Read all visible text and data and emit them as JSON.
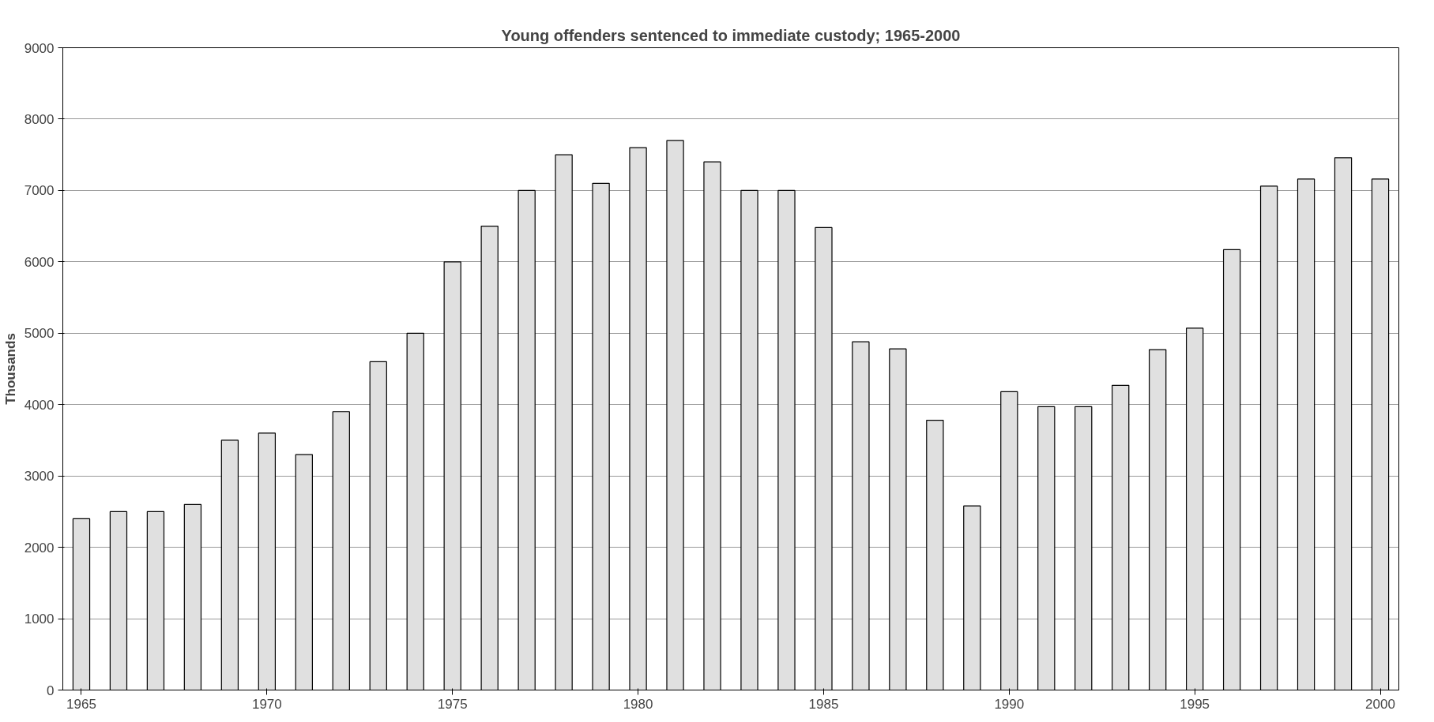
{
  "chart_data": {
    "type": "bar",
    "title": "Young offenders sentenced to immediate custody; 1965-2000",
    "ylabel": "Thousands",
    "categories": [
      "1965",
      null,
      null,
      null,
      null,
      "1970",
      null,
      null,
      null,
      null,
      "1975",
      null,
      null,
      null,
      null,
      "1980",
      null,
      null,
      null,
      null,
      "1985",
      null,
      null,
      null,
      null,
      "1990",
      null,
      null,
      null,
      null,
      "1995",
      null,
      null,
      null,
      null,
      "2000"
    ],
    "values": [
      2400,
      2500,
      2500,
      2600,
      3500,
      3600,
      3300,
      3900,
      4600,
      5000,
      6000,
      6500,
      7000,
      7500,
      7100,
      7600,
      7700,
      7400,
      7000,
      7000,
      6480,
      4880,
      4780,
      3780,
      2580,
      4180,
      3970,
      3970,
      4270,
      4770,
      5070,
      6170,
      7060,
      7160,
      7460,
      7160
    ],
    "color": "#e0e0e0",
    "ylim": [
      0,
      9000
    ],
    "yticks": [
      0,
      1000,
      2000,
      3000,
      4000,
      5000,
      6000,
      7000,
      8000,
      9000
    ],
    "grid": "y"
  }
}
